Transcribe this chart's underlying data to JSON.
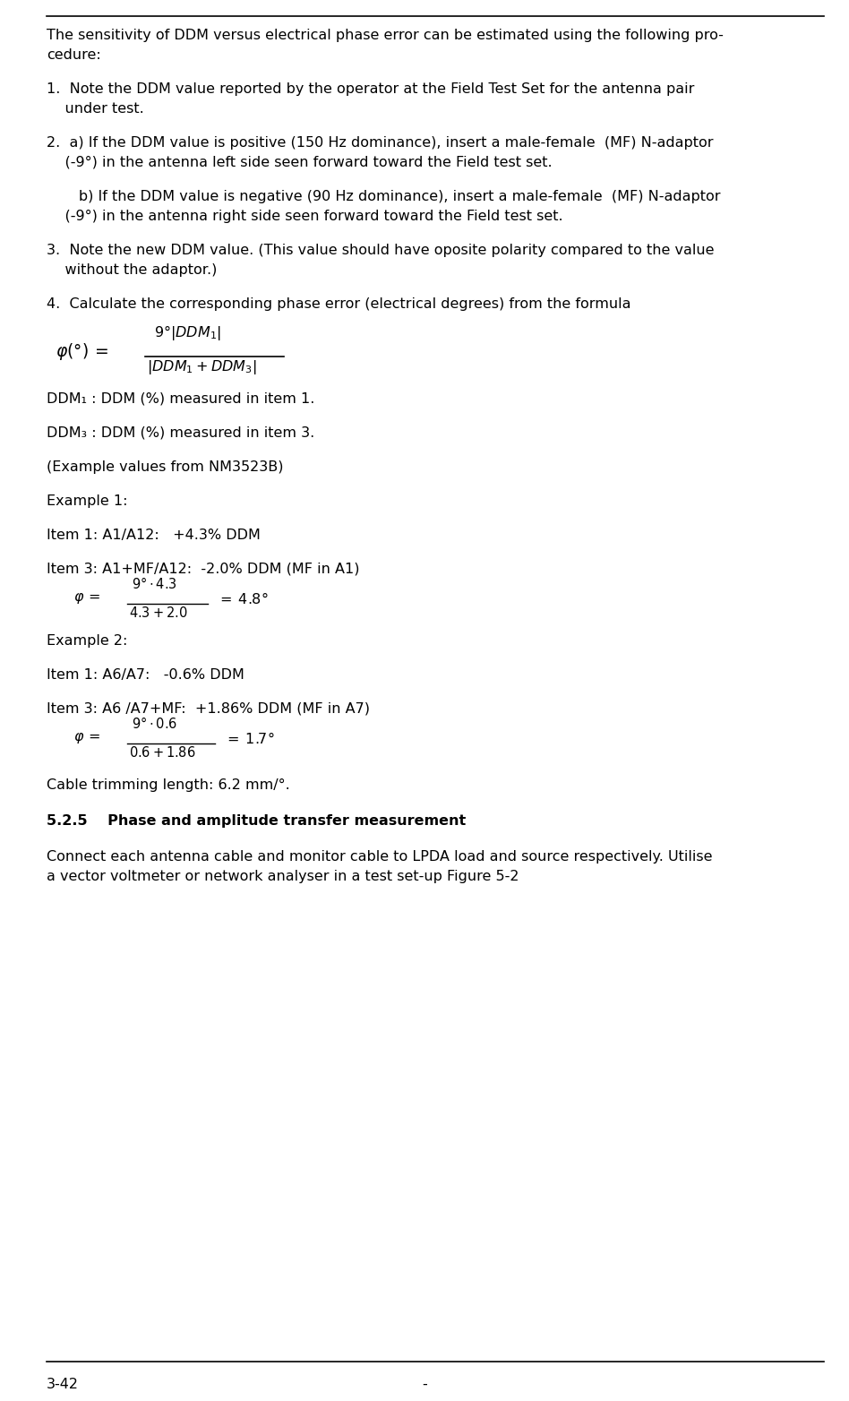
{
  "bg_color": "#ffffff",
  "text_color": "#000000",
  "font_family": "DejaVu Sans",
  "figsize": [
    9.48,
    15.64
  ],
  "dpi": 100,
  "footer_left": "3-42",
  "footer_center": "-",
  "para0_l1": "The sensitivity of DDM versus electrical phase error can be estimated using the following pro-",
  "para0_l2": "cedure:",
  "item1_l1": "1.  Note the DDM value reported by the operator at the Field Test Set for the antenna pair",
  "item1_l2": "    under test.",
  "item2a_l1": "2.  a) If the DDM value is positive (150 Hz dominance), insert a male-female  (MF) N-adaptor",
  "item2a_l2": "    (-9°) in the antenna left side seen forward toward the Field test set.",
  "item2b_l1": "       b) If the DDM value is negative (90 Hz dominance), insert a male-female  (MF) N-adaptor",
  "item2b_l2": "    (-9°) in the antenna right side seen forward toward the Field test set.",
  "item3_l1": "3.  Note the new DDM value. (This value should have oposite polarity compared to the value",
  "item3_l2": "    without the adaptor.)",
  "item4": "4.  Calculate the corresponding phase error (electrical degrees) from the formula",
  "ddm1_label": "DDM₁ : DDM (%) measured in item 1.",
  "ddm3_label": "DDM₃ : DDM (%) measured in item 3.",
  "example_note": "(Example values from NM3523B)",
  "example1_header": "Example 1:",
  "example1_item1": "Item 1: A1/A12:   +4.3% DDM",
  "example1_item3": "Item 3: A1+MF/A12:  -2.0% DDM (MF in A1)",
  "example2_header": "Example 2:",
  "example2_item1": "Item 1: A6/A7:   -0.6% DDM",
  "example2_item3": "Item 3: A6 /A7+MF:  +1.86% DDM (MF in A7)",
  "cable_trimming": "Cable trimming length: 6.2 mm/°.",
  "section_header": "5.2.5    Phase and amplitude transfer measurement",
  "last_para_l1": "Connect each antenna cable and monitor cable to LPDA load and source respectively. Utilise",
  "last_para_l2": "a vector voltmeter or network analyser in a test set-up Figure 5-2"
}
